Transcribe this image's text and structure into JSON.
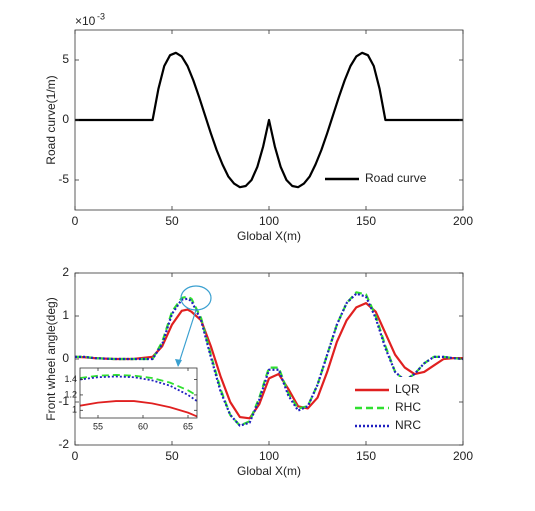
{
  "chart_data": [
    {
      "type": "line",
      "ylabel": "Road curve(1/m)",
      "xlabel": "Global X(m)",
      "multiplier": {
        "base": "×10",
        "exponent": "-3"
      },
      "xlim": [
        0,
        200
      ],
      "xticks": [
        0,
        50,
        100,
        150,
        200
      ],
      "ylim": [
        -7.5,
        7.5
      ],
      "yticks": [
        -5,
        0,
        5
      ],
      "legend": "lower right",
      "x": [
        0,
        40,
        43,
        46,
        49,
        52,
        55,
        58,
        61,
        64,
        67,
        70,
        73,
        76,
        79,
        82,
        85,
        88,
        91,
        94,
        97,
        100,
        103,
        106,
        109,
        112,
        115,
        118,
        121,
        124,
        127,
        130,
        133,
        136,
        139,
        142,
        145,
        148,
        151,
        154,
        157,
        160,
        200
      ],
      "series": [
        {
          "name": "Road curve",
          "color": "#000000",
          "linestyle": "solid",
          "values": [
            0,
            0,
            2.6,
            4.5,
            5.4,
            5.6,
            5.3,
            4.5,
            3.3,
            1.9,
            0.4,
            -1.1,
            -2.5,
            -3.7,
            -4.7,
            -5.3,
            -5.6,
            -5.5,
            -5.0,
            -3.9,
            -2.2,
            0,
            -2.2,
            -3.9,
            -5.0,
            -5.5,
            -5.6,
            -5.3,
            -4.7,
            -3.7,
            -2.5,
            -1.1,
            0.4,
            1.9,
            3.3,
            4.5,
            5.3,
            5.6,
            5.4,
            4.5,
            2.6,
            0,
            0
          ]
        }
      ]
    },
    {
      "type": "line",
      "ylabel": "Front wheel angle(deg)",
      "xlabel": "Global X(m)",
      "xlim": [
        0,
        200
      ],
      "xticks": [
        0,
        50,
        100,
        150,
        200
      ],
      "ylim": [
        -2,
        2
      ],
      "yticks": [
        -2,
        -1,
        0,
        1,
        2
      ],
      "legend": "lower right",
      "x": [
        0,
        5,
        10,
        20,
        30,
        40,
        45,
        50,
        55,
        58,
        60,
        65,
        70,
        75,
        80,
        85,
        90,
        95,
        100,
        105,
        110,
        115,
        120,
        125,
        130,
        135,
        140,
        145,
        150,
        155,
        160,
        165,
        170,
        175,
        180,
        185,
        190,
        195,
        200
      ],
      "series": [
        {
          "name": "LQR",
          "color": "#e02020",
          "linestyle": "solid",
          "values": [
            0.05,
            0.04,
            0.02,
            0,
            0,
            0.05,
            0.3,
            0.8,
            1.12,
            1.15,
            1.1,
            0.9,
            0.3,
            -0.4,
            -1.0,
            -1.35,
            -1.38,
            -1.05,
            -0.45,
            -0.35,
            -0.7,
            -1.1,
            -1.15,
            -0.9,
            -0.3,
            0.4,
            0.9,
            1.2,
            1.3,
            1.1,
            0.6,
            0.1,
            -0.2,
            -0.35,
            -0.3,
            -0.15,
            0,
            0.02,
            0.02
          ]
        },
        {
          "name": "RHC",
          "color": "#30e030",
          "linestyle": "dashed",
          "values": [
            0.05,
            0.05,
            0.02,
            0,
            0,
            0,
            0.4,
            1.1,
            1.42,
            1.45,
            1.4,
            0.95,
            0.1,
            -0.7,
            -1.3,
            -1.55,
            -1.45,
            -0.9,
            -0.2,
            -0.2,
            -0.8,
            -1.15,
            -1.1,
            -0.6,
            0.1,
            0.8,
            1.3,
            1.55,
            1.5,
            1.0,
            0.3,
            -0.3,
            -0.5,
            -0.35,
            -0.1,
            0.05,
            0.05,
            0.02,
            0
          ]
        },
        {
          "name": "NRC",
          "color": "#2020c0",
          "linestyle": "dotted",
          "values": [
            0.05,
            0.05,
            0.02,
            0,
            0,
            0,
            0.35,
            1.05,
            1.38,
            1.4,
            1.35,
            0.9,
            0.05,
            -0.75,
            -1.3,
            -1.55,
            -1.48,
            -0.95,
            -0.25,
            -0.25,
            -0.85,
            -1.2,
            -1.1,
            -0.6,
            0.1,
            0.8,
            1.3,
            1.52,
            1.45,
            0.95,
            0.25,
            -0.3,
            -0.5,
            -0.35,
            -0.1,
            0.05,
            0.05,
            0.02,
            0
          ]
        }
      ]
    },
    {
      "type": "line",
      "xlim": [
        53,
        66
      ],
      "xticks": [
        55,
        60,
        65
      ],
      "ylim": [
        0.9,
        1.55
      ],
      "yticks": [
        1,
        1.2,
        1.4
      ],
      "x": [
        53,
        55,
        57,
        59,
        61,
        63,
        65,
        66
      ],
      "series": [
        {
          "name": "LQR",
          "color": "#e02020",
          "linestyle": "solid",
          "values": [
            1.06,
            1.1,
            1.12,
            1.12,
            1.09,
            1.04,
            0.97,
            0.92
          ]
        },
        {
          "name": "RHC",
          "color": "#30e030",
          "linestyle": "dashed",
          "values": [
            1.42,
            1.45,
            1.46,
            1.45,
            1.42,
            1.36,
            1.26,
            1.19
          ]
        },
        {
          "name": "NRC",
          "color": "#2020c0",
          "linestyle": "dotted",
          "values": [
            1.4,
            1.43,
            1.44,
            1.43,
            1.39,
            1.32,
            1.2,
            1.12
          ]
        }
      ]
    }
  ]
}
